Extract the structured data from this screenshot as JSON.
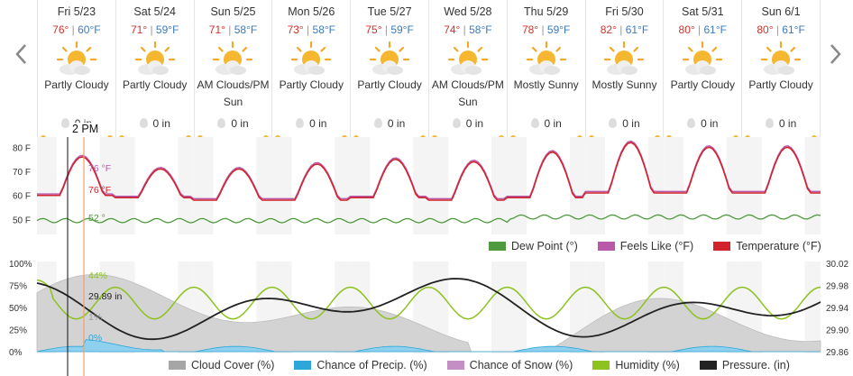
{
  "nav": {
    "prev_icon": "chevron-left-icon",
    "next_icon": "chevron-right-icon"
  },
  "days": [
    {
      "date": "Fri 5/23",
      "hi": "76°",
      "lo": "60°F",
      "condition": "Partly Cloudy",
      "precip": "0 in"
    },
    {
      "date": "Sat 5/24",
      "hi": "71°",
      "lo": "59°F",
      "condition": "Partly Cloudy",
      "precip": "0 in"
    },
    {
      "date": "Sun 5/25",
      "hi": "71°",
      "lo": "58°F",
      "condition": "AM Clouds/PM Sun",
      "precip": "0 in"
    },
    {
      "date": "Mon 5/26",
      "hi": "73°",
      "lo": "58°F",
      "condition": "Partly Cloudy",
      "precip": "0 in"
    },
    {
      "date": "Tue 5/27",
      "hi": "75°",
      "lo": "59°F",
      "condition": "Partly Cloudy",
      "precip": "0 in"
    },
    {
      "date": "Wed 5/28",
      "hi": "74°",
      "lo": "58°F",
      "condition": "AM Clouds/PM Sun",
      "precip": "0 in"
    },
    {
      "date": "Thu 5/29",
      "hi": "78°",
      "lo": "59°F",
      "condition": "Mostly Sunny",
      "precip": "0 in"
    },
    {
      "date": "Fri 5/30",
      "hi": "82°",
      "lo": "61°F",
      "condition": "Mostly Sunny",
      "precip": "0 in"
    },
    {
      "date": "Sat 5/31",
      "hi": "80°",
      "lo": "61°F",
      "condition": "Partly Cloudy",
      "precip": "0 in"
    },
    {
      "date": "Sun 6/1",
      "hi": "80°",
      "lo": "61°F",
      "condition": "Partly Cloudy",
      "precip": "0 in"
    }
  ],
  "cursor": {
    "time": "2 PM",
    "feels_like": "76 °F",
    "temperature": "76 °F",
    "dew_point": "52 °",
    "humidity": "44%",
    "pressure": "29.89 in",
    "cloud_cover": "1%",
    "precip_chance": "0%"
  },
  "temp_chart": {
    "y_ticks": [
      "80 F",
      "70 F",
      "60 F",
      "50 F"
    ],
    "legend": [
      {
        "label": "Dew Point (°)",
        "color": "#4e9a3c"
      },
      {
        "label": "Feels Like (°F)",
        "color": "#b85aa9"
      },
      {
        "label": "Temperature (°F)",
        "color": "#d0232a"
      }
    ]
  },
  "lower_chart": {
    "y_left_ticks": [
      "100%",
      "75%",
      "50%",
      "25%",
      "0%"
    ],
    "y_right_ticks": [
      "30.02",
      "29.98",
      "29.94",
      "29.90",
      "29.86"
    ],
    "legend": [
      {
        "label": "Cloud Cover (%)",
        "color": "#a6a6a6"
      },
      {
        "label": "Chance of Precip. (%)",
        "color": "#2ea6d9"
      },
      {
        "label": "Chance of Snow (%)",
        "color": "#c48fc4"
      },
      {
        "label": "Humidity (%)",
        "color": "#8dc21f"
      },
      {
        "label": "Pressure. (in)",
        "color": "#222222"
      }
    ]
  },
  "colors": {
    "temperature": "#d0232a",
    "feels_like": "#b85aa9",
    "dew_point": "#4e9a3c",
    "humidity": "#8dc21f",
    "pressure": "#222222",
    "cloud_cover": "#c8c8c8",
    "precip": "#2ea6d9",
    "cursor_line": "#f0a070"
  }
}
